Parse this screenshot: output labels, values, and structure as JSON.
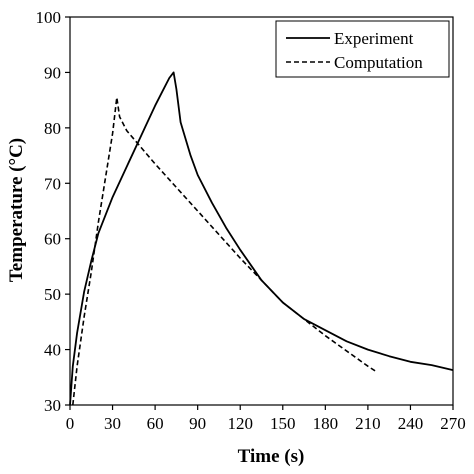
{
  "chart_data": {
    "type": "line",
    "title": "",
    "xlabel": "Time (s)",
    "ylabel": "Temperature (°C)",
    "xlim": [
      0,
      270
    ],
    "ylim": [
      30,
      100
    ],
    "xticks": [
      0,
      30,
      60,
      90,
      120,
      150,
      180,
      210,
      240,
      270
    ],
    "yticks": [
      30,
      40,
      50,
      60,
      70,
      80,
      90,
      100
    ],
    "grid": false,
    "legend_position": "top-right",
    "series": [
      {
        "name": "Experiment",
        "style": "solid",
        "x": [
          0,
          2,
          5,
          10,
          15,
          20,
          30,
          40,
          50,
          60,
          65,
          70,
          73,
          75,
          78,
          85,
          90,
          100,
          110,
          120,
          135,
          150,
          165,
          180,
          195,
          210,
          225,
          240,
          255,
          270
        ],
        "y": [
          30,
          37,
          43,
          50.5,
          56,
          61,
          67.5,
          73,
          78.5,
          84,
          86.5,
          89,
          90,
          87,
          81,
          75,
          71.5,
          66.5,
          62,
          58,
          52.5,
          48.5,
          45.5,
          43.5,
          41.5,
          40,
          38.8,
          37.8,
          37.2,
          36.3
        ]
      },
      {
        "name": "Computation",
        "style": "dashed",
        "x": [
          2,
          5,
          10,
          15,
          20,
          25,
          30,
          33,
          35,
          40,
          60,
          90,
          120,
          150,
          180,
          210,
          216
        ],
        "y": [
          30,
          37,
          46,
          54,
          63,
          71,
          79,
          85.5,
          82,
          79.5,
          73.5,
          65,
          56.5,
          48.5,
          42.5,
          37,
          36
        ]
      }
    ]
  }
}
